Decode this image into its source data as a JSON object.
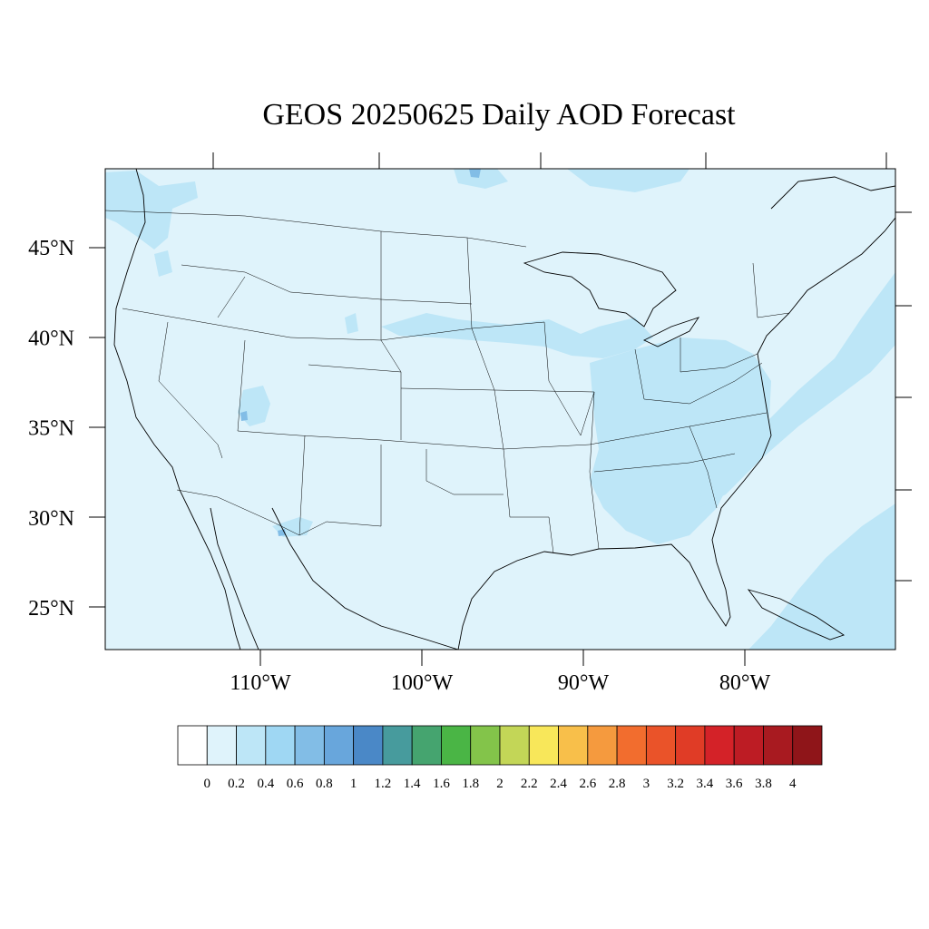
{
  "title": "GEOS 20250625 Daily AOD Forecast",
  "map": {
    "ocean_color": "#dff3fb",
    "land_color": "#dff3fb",
    "lat_ticks": [
      {
        "value": 45,
        "label": "45°N"
      },
      {
        "value": 40,
        "label": "40°N"
      },
      {
        "value": 35,
        "label": "35°N"
      },
      {
        "value": 30,
        "label": "30°N"
      },
      {
        "value": 25,
        "label": "25°N"
      }
    ],
    "lon_ticks": [
      {
        "value": -110,
        "label": "110°W"
      },
      {
        "value": -100,
        "label": "100°W"
      },
      {
        "value": -90,
        "label": "90°W"
      },
      {
        "value": -80,
        "label": "80°W"
      }
    ]
  },
  "colorbar": {
    "colors": [
      "#ffffff",
      "#dff3fb",
      "#bde6f7",
      "#9fd7f3",
      "#82bde6",
      "#68a6dc",
      "#4a88c7",
      "#479b9d",
      "#45a46f",
      "#4ab545",
      "#83c44a",
      "#c3d657",
      "#f8e75a",
      "#f8bf4a",
      "#f59a3e",
      "#f26d2e",
      "#ea5329",
      "#e03c26",
      "#d42228",
      "#bd1c24",
      "#a81a20",
      "#8f1519"
    ],
    "labels": [
      "0",
      "0.2",
      "0.4",
      "0.6",
      "0.8",
      "1",
      "1.2",
      "1.4",
      "1.6",
      "1.8",
      "2",
      "2.2",
      "2.4",
      "2.6",
      "2.8",
      "3",
      "3.2",
      "3.4",
      "3.6",
      "3.8",
      "4"
    ]
  }
}
